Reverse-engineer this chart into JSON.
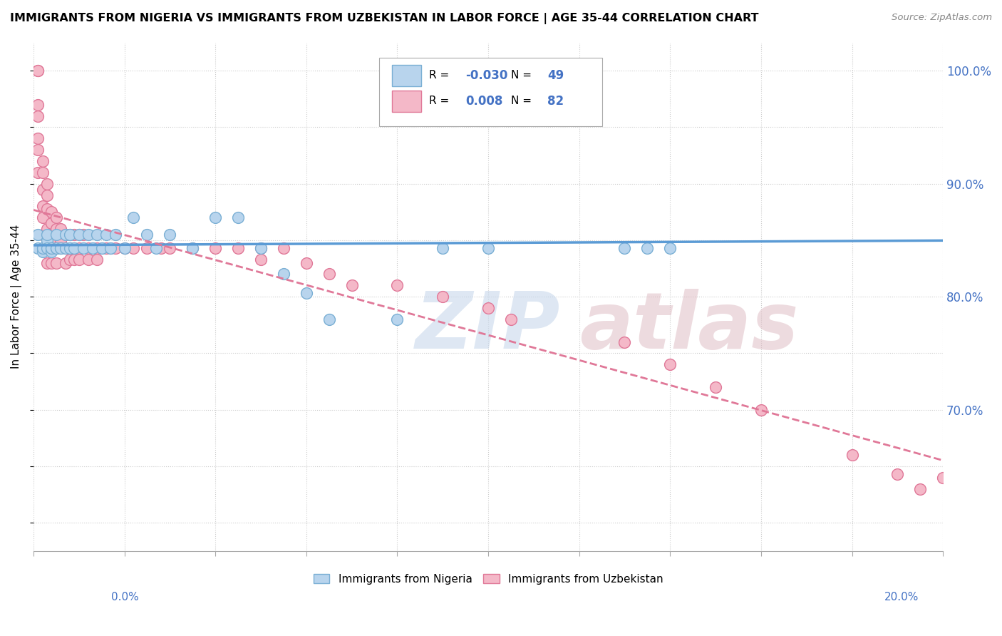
{
  "title": "IMMIGRANTS FROM NIGERIA VS IMMIGRANTS FROM UZBEKISTAN IN LABOR FORCE | AGE 35-44 CORRELATION CHART",
  "source": "Source: ZipAtlas.com",
  "ylabel": "In Labor Force | Age 35-44",
  "xlim": [
    0.0,
    0.2
  ],
  "ylim": [
    0.575,
    1.025
  ],
  "nigeria_R": -0.03,
  "nigeria_N": 49,
  "uzbekistan_R": 0.008,
  "uzbekistan_N": 82,
  "nigeria_color": "#b8d4ed",
  "nigeria_edge": "#7aafd4",
  "nigeria_line_color": "#5b9bd5",
  "uzbekistan_color": "#f4b8c8",
  "uzbekistan_edge": "#e07898",
  "uzbekistan_line_color": "#e07898",
  "nigeria_x": [
    0.001,
    0.001,
    0.002,
    0.002,
    0.002,
    0.003,
    0.003,
    0.003,
    0.004,
    0.004,
    0.004,
    0.005,
    0.005,
    0.005,
    0.006,
    0.006,
    0.007,
    0.007,
    0.008,
    0.008,
    0.009,
    0.01,
    0.011,
    0.012,
    0.013,
    0.014,
    0.015,
    0.016,
    0.017,
    0.018,
    0.02,
    0.022,
    0.025,
    0.027,
    0.03,
    0.035,
    0.04,
    0.045,
    0.05,
    0.055,
    0.06,
    0.065,
    0.08,
    0.09,
    0.1,
    0.12,
    0.13,
    0.14,
    0.135
  ],
  "nigeria_y": [
    0.843,
    0.855,
    0.843,
    0.84,
    0.843,
    0.85,
    0.843,
    0.855,
    0.84,
    0.843,
    0.843,
    0.843,
    0.855,
    0.843,
    0.843,
    0.843,
    0.855,
    0.843,
    0.843,
    0.855,
    0.843,
    0.855,
    0.843,
    0.855,
    0.843,
    0.855,
    0.843,
    0.855,
    0.843,
    0.855,
    0.843,
    0.87,
    0.855,
    0.843,
    0.855,
    0.843,
    0.87,
    0.87,
    0.843,
    0.82,
    0.803,
    0.78,
    0.78,
    0.843,
    0.843,
    0.963,
    0.843,
    0.843,
    0.843
  ],
  "uzbekistan_x": [
    0.001,
    0.001,
    0.001,
    0.001,
    0.001,
    0.001,
    0.001,
    0.002,
    0.002,
    0.002,
    0.002,
    0.002,
    0.002,
    0.002,
    0.003,
    0.003,
    0.003,
    0.003,
    0.003,
    0.003,
    0.004,
    0.004,
    0.004,
    0.004,
    0.004,
    0.005,
    0.005,
    0.005,
    0.005,
    0.005,
    0.006,
    0.006,
    0.006,
    0.007,
    0.007,
    0.007,
    0.008,
    0.008,
    0.008,
    0.009,
    0.009,
    0.009,
    0.01,
    0.01,
    0.01,
    0.011,
    0.011,
    0.012,
    0.012,
    0.013,
    0.014,
    0.014,
    0.015,
    0.016,
    0.017,
    0.018,
    0.02,
    0.022,
    0.025,
    0.028,
    0.03,
    0.035,
    0.04,
    0.045,
    0.05,
    0.05,
    0.055,
    0.06,
    0.065,
    0.07,
    0.08,
    0.09,
    0.1,
    0.105,
    0.13,
    0.14,
    0.15,
    0.16,
    0.18,
    0.19,
    0.195,
    0.2
  ],
  "uzbekistan_y": [
    1.0,
    1.0,
    0.97,
    0.96,
    0.94,
    0.93,
    0.91,
    0.92,
    0.91,
    0.895,
    0.88,
    0.87,
    0.855,
    0.843,
    0.9,
    0.89,
    0.878,
    0.86,
    0.843,
    0.83,
    0.875,
    0.865,
    0.855,
    0.843,
    0.83,
    0.87,
    0.86,
    0.85,
    0.843,
    0.83,
    0.86,
    0.85,
    0.843,
    0.855,
    0.843,
    0.83,
    0.855,
    0.843,
    0.833,
    0.855,
    0.843,
    0.833,
    0.855,
    0.843,
    0.833,
    0.855,
    0.843,
    0.843,
    0.833,
    0.843,
    0.843,
    0.833,
    0.843,
    0.843,
    0.843,
    0.843,
    0.843,
    0.843,
    0.843,
    0.843,
    0.843,
    0.843,
    0.843,
    0.843,
    0.843,
    0.833,
    0.843,
    0.83,
    0.82,
    0.81,
    0.81,
    0.8,
    0.79,
    0.78,
    0.76,
    0.74,
    0.72,
    0.7,
    0.66,
    0.643,
    0.63,
    0.64
  ],
  "y_ticks": [
    0.6,
    0.65,
    0.7,
    0.75,
    0.8,
    0.85,
    0.9,
    0.95,
    1.0
  ],
  "y_tick_labels_right": [
    "",
    "",
    "70.0%",
    "",
    "80.0%",
    "",
    "90.0%",
    "",
    "100.0%"
  ]
}
